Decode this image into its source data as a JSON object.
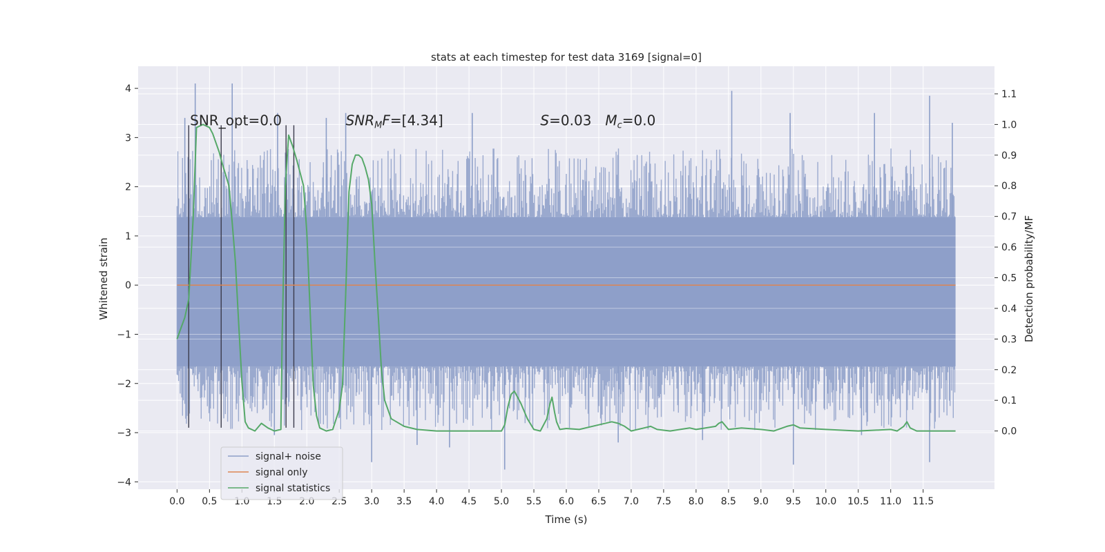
{
  "chart_data": {
    "type": "line",
    "title": "stats at each timestep for test data 3169 [signal=0]",
    "xlabel": "Time (s)",
    "ylabel": "Whitened strain",
    "y2label": "Detection probability/MF",
    "xlim": [
      -0.6,
      12.6
    ],
    "ylim": [
      -4.15,
      4.45
    ],
    "y2lim": [
      -0.19,
      1.19
    ],
    "x_ticks": [
      "0.0",
      "0.5",
      "1.0",
      "1.5",
      "2.0",
      "2.5",
      "3.0",
      "3.5",
      "4.0",
      "4.5",
      "5.0",
      "5.5",
      "6.0",
      "6.5",
      "7.0",
      "7.5",
      "8.0",
      "8.5",
      "9.0",
      "9.5",
      "10.0",
      "10.5",
      "11.0",
      "11.5"
    ],
    "y_ticks": [
      "4",
      "3",
      "2",
      "1",
      "0",
      "−1",
      "−2",
      "−3",
      "−4"
    ],
    "y2_ticks": [
      "1.1",
      "1.0",
      "0.9",
      "0.8",
      "0.7",
      "0.6",
      "0.5",
      "0.4",
      "0.3",
      "0.2",
      "0.1",
      "0.0"
    ],
    "grid": true,
    "legend_position": "lower-left",
    "annotations": [
      {
        "text": "SNR_opt=0.0",
        "x": 0.2
      },
      {
        "text": "SNR_MF=[4.34]",
        "x": 2.6
      },
      {
        "text": "S=0.03",
        "x": 5.6
      },
      {
        "text": "M_c=0.0",
        "x": 6.6
      }
    ],
    "series": [
      {
        "name": "signal+ noise",
        "color": "#8c9ec8",
        "axis": "left",
        "x_range": [
          0.0,
          12.0
        ],
        "band_low": -1.65,
        "band_high": 1.38,
        "spikes": [
          [
            0.28,
            4.1
          ],
          [
            0.85,
            4.1
          ],
          [
            0.12,
            3.4
          ],
          [
            1.55,
            3.5
          ],
          [
            2.3,
            3.4
          ],
          [
            2.6,
            3.5
          ],
          [
            4.55,
            3.5
          ],
          [
            8.55,
            3.95
          ],
          [
            9.45,
            3.5
          ],
          [
            10.75,
            3.5
          ],
          [
            11.6,
            3.85
          ],
          [
            11.95,
            3.3
          ],
          [
            3.0,
            -3.6
          ],
          [
            5.05,
            -3.75
          ],
          [
            9.5,
            -3.65
          ],
          [
            11.6,
            -3.6
          ],
          [
            1.5,
            -3.05
          ],
          [
            3.7,
            -3.25
          ],
          [
            4.2,
            -3.3
          ],
          [
            6.8,
            -3.2
          ],
          [
            8.1,
            -3.15
          ],
          [
            10.55,
            -3.05
          ]
        ]
      },
      {
        "name": "signal only",
        "color": "#dd8452",
        "axis": "left",
        "x": [
          0.0,
          12.0
        ],
        "y": [
          0.0,
          0.0
        ]
      },
      {
        "name": "signal statistics",
        "color": "#55a868",
        "axis": "right",
        "x": [
          0.0,
          0.05,
          0.12,
          0.18,
          0.25,
          0.3,
          0.4,
          0.5,
          0.55,
          0.6,
          0.65,
          0.7,
          0.8,
          0.85,
          0.9,
          0.95,
          1.0,
          1.05,
          1.1,
          1.2,
          1.3,
          1.4,
          1.5,
          1.6,
          1.62,
          1.67,
          1.72,
          1.78,
          1.85,
          1.95,
          2.0,
          2.05,
          2.1,
          2.15,
          2.2,
          2.3,
          2.4,
          2.5,
          2.55,
          2.6,
          2.65,
          2.7,
          2.75,
          2.8,
          2.85,
          2.9,
          2.95,
          3.0,
          3.05,
          3.1,
          3.15,
          3.2,
          3.3,
          3.5,
          3.7,
          4.0,
          4.5,
          5.0,
          5.05,
          5.1,
          5.15,
          5.2,
          5.3,
          5.4,
          5.5,
          5.6,
          5.7,
          5.75,
          5.78,
          5.82,
          5.85,
          5.9,
          6.0,
          6.2,
          6.5,
          6.7,
          6.8,
          6.9,
          7.0,
          7.2,
          7.3,
          7.4,
          7.6,
          7.9,
          8.0,
          8.3,
          8.35,
          8.4,
          8.5,
          8.7,
          9.0,
          9.2,
          9.4,
          9.5,
          9.6,
          10.0,
          10.5,
          11.0,
          11.1,
          11.2,
          11.25,
          11.3,
          11.4,
          12.0
        ],
        "y": [
          0.3,
          0.33,
          0.37,
          0.43,
          0.7,
          0.99,
          1.0,
          0.99,
          0.97,
          0.94,
          0.91,
          0.87,
          0.8,
          0.68,
          0.55,
          0.35,
          0.16,
          0.03,
          0.01,
          0.0,
          0.025,
          0.01,
          0.0,
          0.005,
          0.3,
          0.8,
          0.965,
          0.93,
          0.88,
          0.8,
          0.65,
          0.4,
          0.15,
          0.05,
          0.01,
          0.0,
          0.005,
          0.07,
          0.15,
          0.45,
          0.78,
          0.87,
          0.9,
          0.9,
          0.89,
          0.86,
          0.82,
          0.74,
          0.55,
          0.38,
          0.2,
          0.1,
          0.04,
          0.015,
          0.005,
          0.0,
          0.0,
          0.0,
          0.02,
          0.08,
          0.12,
          0.13,
          0.09,
          0.04,
          0.005,
          0.0,
          0.04,
          0.09,
          0.11,
          0.06,
          0.03,
          0.005,
          0.008,
          0.005,
          0.02,
          0.03,
          0.025,
          0.015,
          0.0,
          0.01,
          0.015,
          0.005,
          0.0,
          0.01,
          0.005,
          0.015,
          0.025,
          0.03,
          0.005,
          0.01,
          0.005,
          0.0,
          0.015,
          0.02,
          0.01,
          0.005,
          0.0,
          0.005,
          0.0,
          0.015,
          0.03,
          0.01,
          0.0,
          0.0
        ]
      }
    ],
    "marker_lines": [
      0.18,
      0.68,
      1.68,
      1.8
    ],
    "marker_line_top": 3.25,
    "marker_line_bottom": -2.9
  }
}
